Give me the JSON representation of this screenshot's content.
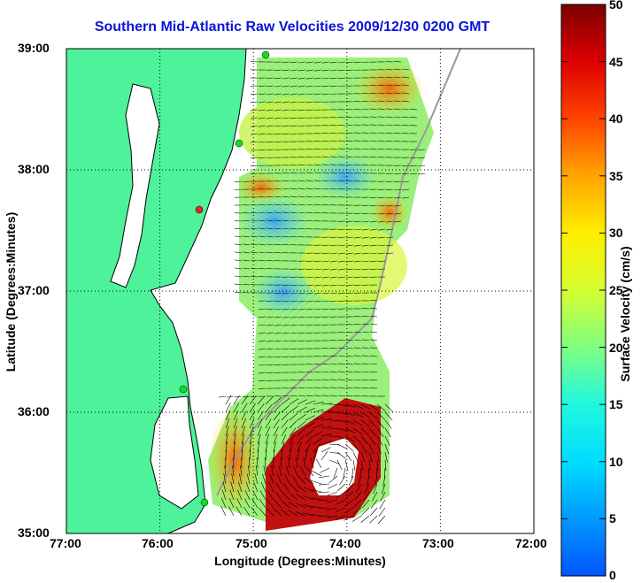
{
  "title": "Southern Mid-Atlantic Raw Velocities 2009/12/30 0200 GMT",
  "map": {
    "x_axis": {
      "label": "Longitude (Degrees:Minutes)",
      "ticks": [
        "77:00",
        "76:00",
        "75:00",
        "74:00",
        "73:00",
        "72:00"
      ],
      "range_deg_west": [
        77,
        72
      ]
    },
    "y_axis": {
      "label": "Latitude (Degrees:Minutes)",
      "ticks": [
        "39:00",
        "38:00",
        "37:00",
        "36:00",
        "35:00"
      ],
      "range_deg_north": [
        35,
        39
      ]
    },
    "grid": true,
    "colors": {
      "land": "#4df29a",
      "coast": "#000000",
      "depth_contour": "#9a9a9a",
      "station": "#11dd22",
      "station_inactive": "#ee2222"
    }
  },
  "colorbar": {
    "label": "Surface Velocity (cm/s)",
    "ticks": [
      "50",
      "45",
      "40",
      "35",
      "30",
      "25",
      "20",
      "15",
      "10",
      "5",
      "0"
    ],
    "range": [
      0,
      50
    ],
    "colormap": "jet"
  }
}
